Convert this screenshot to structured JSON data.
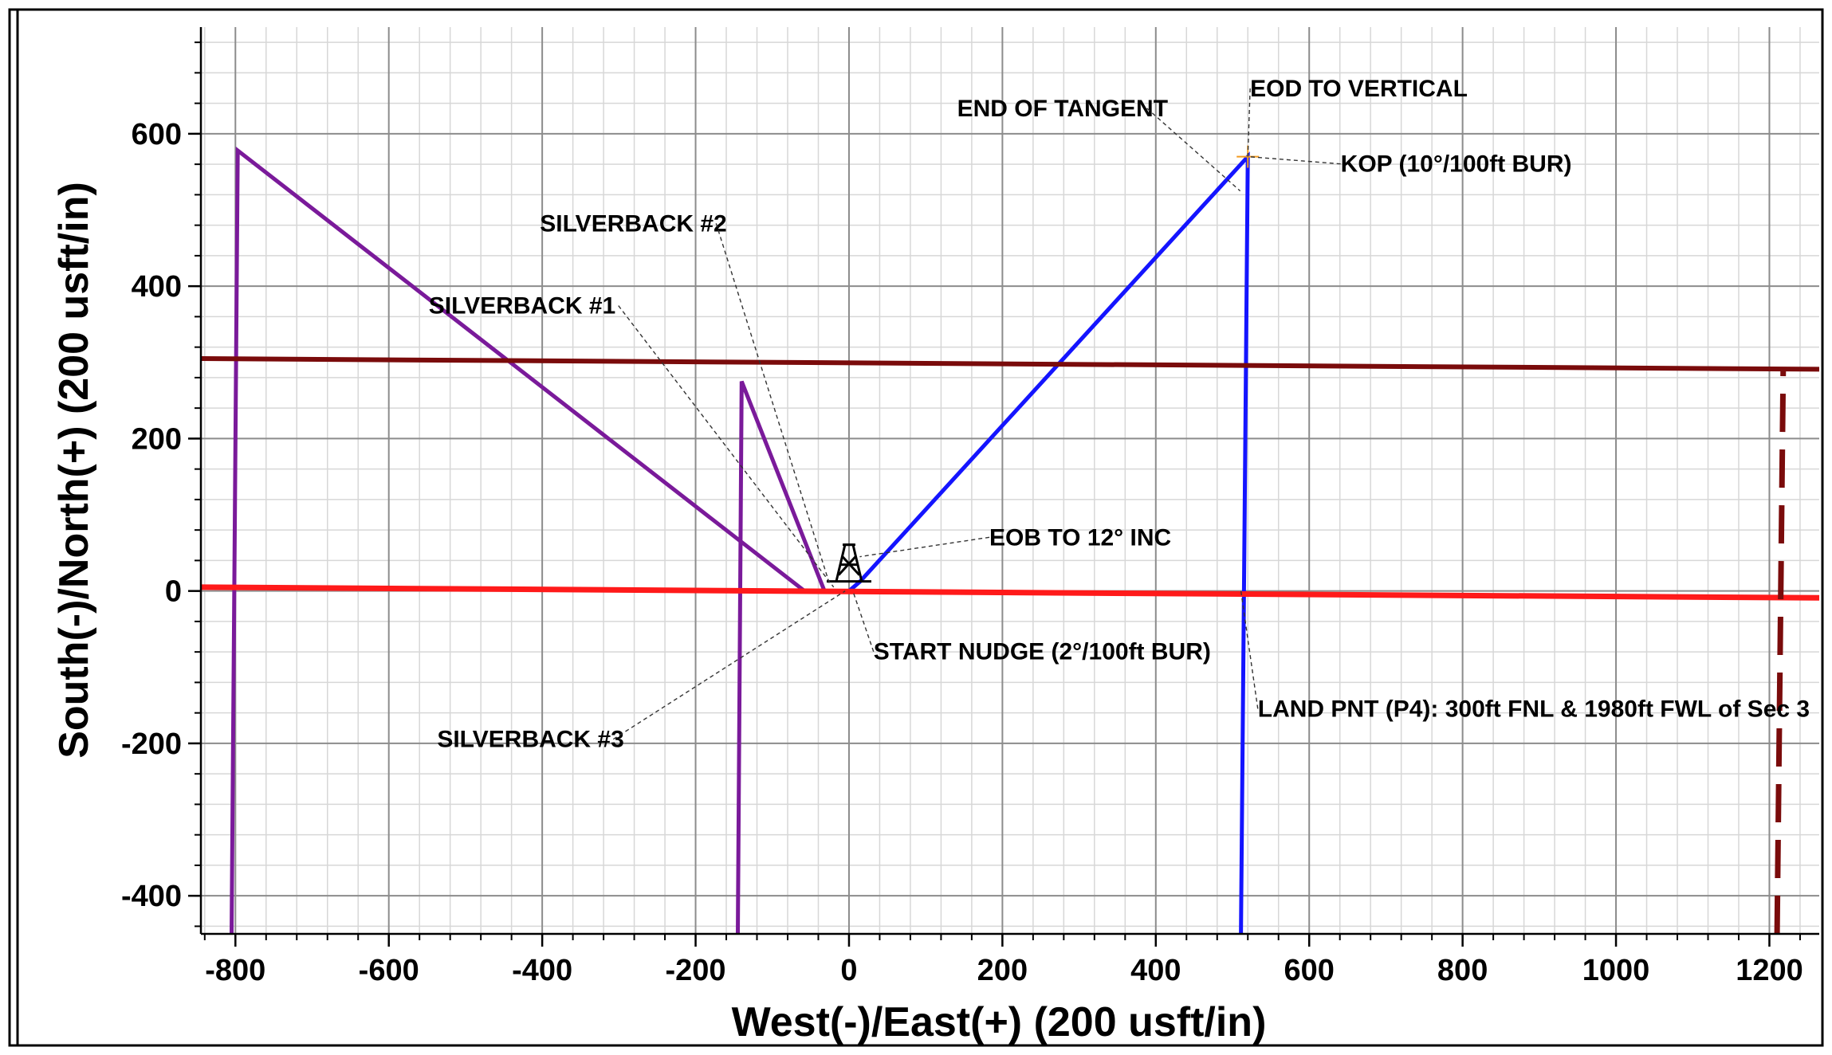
{
  "chart_data": {
    "type": "line",
    "title": "",
    "xlabel": "West(-)/East(+) (200 usft/in)",
    "ylabel": "South(-)/North(+) (200 usft/in)",
    "xlim": [
      -845,
      1265
    ],
    "ylim": [
      -450,
      740
    ],
    "x_ticks": [
      -800,
      -600,
      -400,
      -200,
      0,
      200,
      400,
      600,
      800,
      1000,
      1200
    ],
    "y_ticks": [
      -400,
      -200,
      0,
      200,
      400,
      600
    ],
    "grid": true,
    "colors": {
      "well_path": "#1414ff",
      "offset_wells": "#7a1a9a",
      "north_line": "#7a0b0b",
      "south_line": "#ff1a1a",
      "section_line": "#7a0b0b",
      "grid_major": "#8c8c8c",
      "grid_minor": "#d7d7d7"
    },
    "series": [
      {
        "id": "planned-well",
        "points": [
          [
            0,
            0
          ],
          [
            14,
            12
          ],
          [
            520,
            570
          ],
          [
            520,
            570
          ],
          [
            511,
            -450
          ]
        ]
      },
      {
        "id": "silverback-1",
        "points": [
          [
            -145,
            -450
          ],
          [
            -140,
            275
          ],
          [
            -32,
            0
          ]
        ]
      },
      {
        "id": "silverback-2",
        "points": [
          [
            -805,
            -450
          ],
          [
            -797,
            578
          ],
          [
            -58,
            0
          ]
        ]
      },
      {
        "id": "silverback-3",
        "points": []
      },
      {
        "id": "lease-line-north",
        "points": [
          [
            -845,
            305
          ],
          [
            1265,
            291
          ]
        ]
      },
      {
        "id": "lease-line-south",
        "points": [
          [
            -845,
            5
          ],
          [
            1265,
            -9
          ]
        ]
      },
      {
        "id": "section-line",
        "points": [
          [
            1210,
            -450
          ],
          [
            1218,
            292
          ]
        ]
      }
    ],
    "markers": {
      "rig": [
        0,
        0
      ],
      "kop": [
        520,
        570
      ]
    },
    "annotations": [
      {
        "text": "EOD TO VERTICAL",
        "x": 523,
        "y": 649,
        "point": [
          520,
          570
        ]
      },
      {
        "text": "END OF TANGENT",
        "x": 141,
        "y": 623,
        "point": [
          510,
          525
        ]
      },
      {
        "text": "KOP (10°/100ft BUR)",
        "x": 641,
        "y": 550,
        "point": [
          520,
          570
        ]
      },
      {
        "text": "SILVERBACK #2",
        "x": -403,
        "y": 472,
        "point": [
          -25,
          8
        ]
      },
      {
        "text": "SILVERBACK  #1",
        "x": -548,
        "y": 364,
        "point": [
          -20,
          5
        ]
      },
      {
        "text": "EOB TO 12° INC",
        "x": 183,
        "y": 60,
        "point": [
          14,
          45
        ]
      },
      {
        "text": "START NUDGE (2°/100ft BUR)",
        "x": 32,
        "y": -90,
        "point": [
          5,
          0
        ]
      },
      {
        "text": "SILVERBACK #3",
        "x": -537,
        "y": -205,
        "point": [
          -5,
          0
        ]
      },
      {
        "text": "LAND PNT (P4): 300ft FNL & 1980ft FWL of Sec 3",
        "x": 533,
        "y": -165,
        "point": [
          511,
          0
        ]
      }
    ]
  }
}
